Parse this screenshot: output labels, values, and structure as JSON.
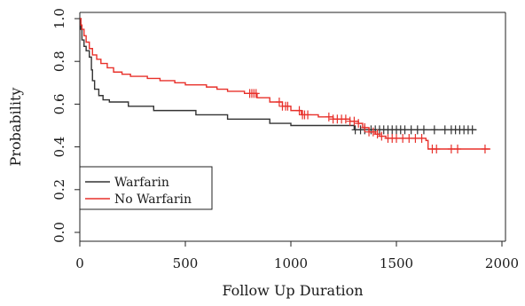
{
  "chart_data": {
    "type": "line",
    "subtype": "kaplan-meier",
    "xlabel": "Follow Up Duration",
    "ylabel": "Probability",
    "xlim": [
      0,
      2000
    ],
    "ylim": [
      0,
      1.0
    ],
    "x_ticks": [
      0,
      500,
      1000,
      1500,
      2000
    ],
    "y_ticks": [
      0.0,
      0.2,
      0.4,
      0.6,
      0.8,
      1.0
    ],
    "x_tick_labels": [
      "0",
      "500",
      "1000",
      "1500",
      "2000"
    ],
    "y_tick_labels": [
      "0.0",
      "0.2",
      "0.4",
      "0.6",
      "0.8",
      "1.0"
    ],
    "grid": false,
    "legend_position": "bottom-left",
    "series": [
      {
        "name": "Warfarin",
        "color": "#333333",
        "steps": [
          [
            0,
            1.0
          ],
          [
            5,
            0.95
          ],
          [
            10,
            0.9
          ],
          [
            20,
            0.87
          ],
          [
            30,
            0.85
          ],
          [
            45,
            0.82
          ],
          [
            55,
            0.76
          ],
          [
            60,
            0.71
          ],
          [
            70,
            0.67
          ],
          [
            90,
            0.64
          ],
          [
            110,
            0.62
          ],
          [
            140,
            0.61
          ],
          [
            230,
            0.59
          ],
          [
            350,
            0.57
          ],
          [
            550,
            0.55
          ],
          [
            700,
            0.53
          ],
          [
            900,
            0.51
          ],
          [
            1000,
            0.5
          ],
          [
            1300,
            0.48
          ],
          [
            1880,
            0.48
          ]
        ],
        "censored": [
          1305,
          1330,
          1350,
          1380,
          1400,
          1420,
          1440,
          1460,
          1480,
          1500,
          1520,
          1540,
          1570,
          1600,
          1630,
          1680,
          1730,
          1760,
          1780,
          1800,
          1820,
          1840,
          1860
        ]
      },
      {
        "name": "No Warfarin",
        "color": "#e8302a",
        "steps": [
          [
            0,
            1.0
          ],
          [
            5,
            0.97
          ],
          [
            10,
            0.95
          ],
          [
            20,
            0.92
          ],
          [
            30,
            0.89
          ],
          [
            45,
            0.86
          ],
          [
            60,
            0.83
          ],
          [
            80,
            0.81
          ],
          [
            100,
            0.79
          ],
          [
            130,
            0.77
          ],
          [
            160,
            0.75
          ],
          [
            200,
            0.74
          ],
          [
            240,
            0.73
          ],
          [
            320,
            0.72
          ],
          [
            380,
            0.71
          ],
          [
            450,
            0.7
          ],
          [
            500,
            0.69
          ],
          [
            600,
            0.68
          ],
          [
            650,
            0.67
          ],
          [
            700,
            0.66
          ],
          [
            780,
            0.65
          ],
          [
            840,
            0.63
          ],
          [
            900,
            0.61
          ],
          [
            960,
            0.59
          ],
          [
            1000,
            0.57
          ],
          [
            1050,
            0.55
          ],
          [
            1130,
            0.54
          ],
          [
            1200,
            0.53
          ],
          [
            1280,
            0.52
          ],
          [
            1320,
            0.51
          ],
          [
            1340,
            0.49
          ],
          [
            1370,
            0.47
          ],
          [
            1400,
            0.46
          ],
          [
            1420,
            0.45
          ],
          [
            1450,
            0.44
          ],
          [
            1640,
            0.43
          ],
          [
            1650,
            0.39
          ],
          [
            1945,
            0.39
          ]
        ],
        "censored": [
          805,
          815,
          825,
          835,
          945,
          960,
          975,
          985,
          1040,
          1055,
          1065,
          1080,
          1180,
          1200,
          1220,
          1240,
          1260,
          1280,
          1300,
          1320,
          1350,
          1370,
          1390,
          1410,
          1430,
          1460,
          1480,
          1500,
          1530,
          1560,
          1590,
          1620,
          1670,
          1690,
          1760,
          1790,
          1920
        ]
      }
    ]
  }
}
